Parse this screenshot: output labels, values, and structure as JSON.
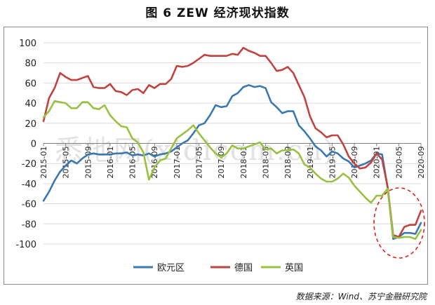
{
  "title": "图 6  ZEW 经济现状指数",
  "source": "数据来源：Wind、苏宁金融研究院",
  "watermark": "悉地网(xidicom.cn)",
  "chart_data": {
    "type": "line",
    "title": "图 6  ZEW 经济现状指数",
    "xlabel": "",
    "ylabel": "",
    "ylim": [
      -100,
      100
    ],
    "yticks": [
      -100,
      -80,
      -60,
      -40,
      -20,
      0,
      20,
      40,
      60,
      80,
      100
    ],
    "x_tick_labels": [
      "2015-01",
      "2015-05",
      "2015-09",
      "2016-01",
      "2016-05",
      "2016-09",
      "2017-01",
      "2017-05",
      "2017-09",
      "2018-01",
      "2018-05",
      "2018-09",
      "2019-01",
      "2019-05",
      "2019-09",
      "2020-01",
      "2020-05",
      "2020-09"
    ],
    "x": [
      "2015-01",
      "2015-02",
      "2015-03",
      "2015-04",
      "2015-05",
      "2015-06",
      "2015-07",
      "2015-08",
      "2015-09",
      "2015-10",
      "2015-11",
      "2015-12",
      "2016-01",
      "2016-02",
      "2016-03",
      "2016-04",
      "2016-05",
      "2016-06",
      "2016-07",
      "2016-08",
      "2016-09",
      "2016-10",
      "2016-11",
      "2016-12",
      "2017-01",
      "2017-02",
      "2017-03",
      "2017-04",
      "2017-05",
      "2017-06",
      "2017-07",
      "2017-08",
      "2017-09",
      "2017-10",
      "2017-11",
      "2017-12",
      "2018-01",
      "2018-02",
      "2018-03",
      "2018-04",
      "2018-05",
      "2018-06",
      "2018-07",
      "2018-08",
      "2018-09",
      "2018-10",
      "2018-11",
      "2018-12",
      "2019-01",
      "2019-02",
      "2019-03",
      "2019-04",
      "2019-05",
      "2019-06",
      "2019-07",
      "2019-08",
      "2019-09",
      "2019-10",
      "2019-11",
      "2019-12",
      "2020-01",
      "2020-02",
      "2020-03",
      "2020-04",
      "2020-05",
      "2020-06",
      "2020-07",
      "2020-08",
      "2020-09"
    ],
    "series": [
      {
        "name": "欧元区",
        "color": "#3a78b1",
        "values": [
          -57,
          -48,
          -37,
          -28,
          -22,
          -17,
          -20,
          -15,
          -11,
          -10,
          -11,
          -11,
          -11,
          -10,
          -10,
          -9,
          -12,
          -11,
          -12,
          -10,
          -13,
          -11,
          -10,
          -8,
          -4,
          0,
          3,
          10,
          18,
          20,
          28,
          38,
          36,
          37,
          47,
          50,
          56,
          58,
          56,
          57,
          55,
          41,
          36,
          30,
          32,
          32,
          18,
          12,
          5,
          -3,
          -7,
          -13,
          -8,
          -10,
          -15,
          -18,
          -24,
          -22,
          -20,
          -17,
          -10,
          -11,
          -44,
          -95,
          -93,
          -89,
          -89,
          -90,
          -79
        ]
      },
      {
        "name": "德国",
        "color": "#c0433f",
        "values": [
          22,
          45,
          55,
          70,
          66,
          63,
          63,
          65,
          67,
          56,
          55,
          55,
          59,
          52,
          51,
          48,
          53,
          54,
          50,
          58,
          55,
          59,
          59,
          64,
          77,
          76,
          77,
          80,
          84,
          88,
          87,
          87,
          87,
          87,
          89,
          88,
          95,
          92,
          90,
          87,
          87,
          80,
          72,
          73,
          76,
          70,
          58,
          46,
          27,
          15,
          11,
          6,
          8,
          8,
          -1,
          -13,
          -20,
          -25,
          -24,
          -19,
          -10,
          -16,
          -43,
          -91,
          -93,
          -83,
          -81,
          -81,
          -67
        ]
      },
      {
        "name": "英国",
        "color": "#99c140",
        "values": [
          26,
          32,
          42,
          41,
          40,
          35,
          35,
          41,
          41,
          35,
          34,
          38,
          28,
          22,
          17,
          16,
          5,
          1,
          -9,
          -36,
          -24,
          -17,
          -15,
          -5,
          5,
          9,
          13,
          18,
          10,
          3,
          -4,
          -10,
          -14,
          -10,
          -2,
          -5,
          -5,
          -3,
          -1,
          1,
          -6,
          -5,
          -10,
          -7,
          -7,
          -6,
          -10,
          -21,
          -24,
          -30,
          -35,
          -38,
          -38,
          -35,
          -30,
          -34,
          -42,
          -48,
          -54,
          -59,
          -52,
          -52,
          -45,
          -93,
          -94,
          -93,
          -93,
          -95,
          -86
        ]
      }
    ],
    "legend_position": "bottom",
    "annotation": "red dashed circle highlighting 2020 drop",
    "grid": {
      "horizontal": true,
      "vertical": false
    }
  }
}
